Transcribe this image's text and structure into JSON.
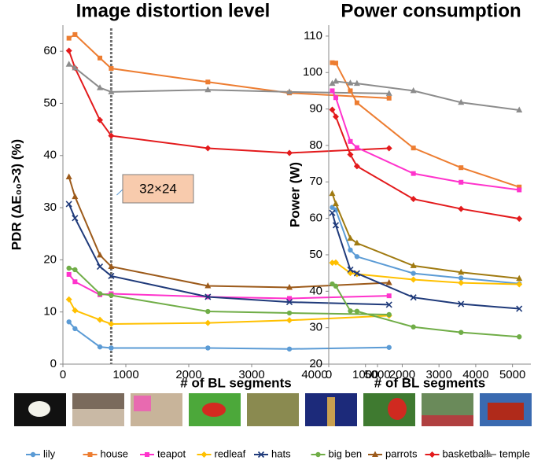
{
  "chart_data": [
    {
      "type": "line",
      "title": "Image distortion level",
      "xlabel": "# of BL segments",
      "ylabel": "PDR (ΔE₀₀>3) (%)",
      "x": [
        96,
        192,
        588,
        768,
        2304,
        3600,
        5184
      ],
      "xlim": [
        0,
        5500
      ],
      "xticks": [
        0,
        1000,
        2000,
        3000,
        4000,
        5000
      ],
      "ylim": [
        0,
        65
      ],
      "yticks": [
        0,
        10,
        20,
        30,
        40,
        50,
        60
      ],
      "grid": false,
      "annotation": {
        "text": "32×24",
        "x": 768
      },
      "series": [
        {
          "name": "lily",
          "color": "#5b9bd5",
          "marker": "circle",
          "values": [
            8.1,
            6.8,
            3.3,
            3.1,
            3.1,
            2.9,
            3.2
          ]
        },
        {
          "name": "house",
          "color": "#ed7d31",
          "marker": "square",
          "values": [
            62.5,
            63.2,
            58.7,
            56.7,
            54.1,
            52.0,
            51.0
          ]
        },
        {
          "name": "teapot",
          "color": "#ff33cc",
          "marker": "square",
          "values": [
            17.2,
            15.8,
            13.3,
            13.5,
            12.9,
            12.6,
            13.1
          ]
        },
        {
          "name": "redleaf",
          "color": "#ffc000",
          "marker": "diamond",
          "values": [
            12.4,
            10.3,
            8.5,
            7.7,
            7.9,
            8.4,
            9.3
          ]
        },
        {
          "name": "hats",
          "color": "#1f3a7a",
          "marker": "x",
          "values": [
            30.7,
            28.0,
            18.7,
            16.9,
            12.9,
            11.9,
            11.4
          ]
        },
        {
          "name": "big ben",
          "color": "#70ad47",
          "marker": "circle",
          "values": [
            18.4,
            18.1,
            13.5,
            13.2,
            10.1,
            9.8,
            9.5
          ]
        },
        {
          "name": "parrots",
          "color": "#9c5a1a",
          "marker": "triangle",
          "values": [
            35.9,
            32.1,
            20.9,
            18.7,
            15.0,
            14.7,
            15.6
          ]
        },
        {
          "name": "basketball",
          "color": "#e31a1c",
          "marker": "diamond",
          "values": [
            60.1,
            56.8,
            46.8,
            43.8,
            41.4,
            40.5,
            41.4
          ]
        },
        {
          "name": "temple",
          "color": "#8c8c8c",
          "marker": "triangle",
          "values": [
            57.5,
            56.8,
            53.0,
            52.2,
            52.6,
            52.2,
            51.9
          ]
        }
      ]
    },
    {
      "type": "line",
      "title": "Power consumption",
      "xlabel": "# of BL segments",
      "ylabel": "Power (W)",
      "x": [
        96,
        192,
        588,
        768,
        2304,
        3600,
        5184
      ],
      "xlim": [
        0,
        5500
      ],
      "xticks": [
        0,
        1000,
        2000,
        3000,
        4000,
        5000
      ],
      "ylim": [
        20,
        113
      ],
      "yticks": [
        20,
        30,
        40,
        50,
        60,
        70,
        80,
        90,
        100,
        110
      ],
      "grid": false,
      "series": [
        {
          "name": "lily",
          "color": "#5b9bd5",
          "marker": "circle",
          "values": [
            63.0,
            62.3,
            51.3,
            49.5,
            44.9,
            43.6,
            42.1
          ]
        },
        {
          "name": "house",
          "color": "#ed7d31",
          "marker": "square",
          "values": [
            102.7,
            102.6,
            95.0,
            91.7,
            79.3,
            73.9,
            68.6
          ]
        },
        {
          "name": "teapot",
          "color": "#ff33cc",
          "marker": "square",
          "values": [
            95.0,
            93.1,
            81.1,
            79.4,
            72.3,
            69.9,
            67.8
          ]
        },
        {
          "name": "redleaf",
          "color": "#ffc000",
          "marker": "diamond",
          "values": [
            47.8,
            47.9,
            45.0,
            44.7,
            43.2,
            42.3,
            41.9
          ]
        },
        {
          "name": "hats",
          "color": "#1f3a7a",
          "marker": "x",
          "values": [
            61.5,
            58.1,
            45.9,
            44.9,
            38.3,
            36.5,
            35.2
          ]
        },
        {
          "name": "big ben",
          "color": "#70ad47",
          "marker": "circle",
          "values": [
            42.0,
            41.4,
            34.6,
            34.5,
            30.2,
            28.7,
            27.5
          ]
        },
        {
          "name": "parrots",
          "color": "#a07a10",
          "marker": "triangle",
          "values": [
            66.8,
            64.0,
            54.5,
            53.2,
            47.0,
            45.2,
            43.5
          ]
        },
        {
          "name": "basketball",
          "color": "#e31a1c",
          "marker": "diamond",
          "values": [
            89.8,
            87.9,
            77.5,
            74.3,
            65.3,
            62.6,
            59.9
          ]
        },
        {
          "name": "temple",
          "color": "#8c8c8c",
          "marker": "triangle",
          "values": [
            97.0,
            97.6,
            97.1,
            97.0,
            95.0,
            91.8,
            89.7
          ]
        }
      ]
    }
  ]
}
